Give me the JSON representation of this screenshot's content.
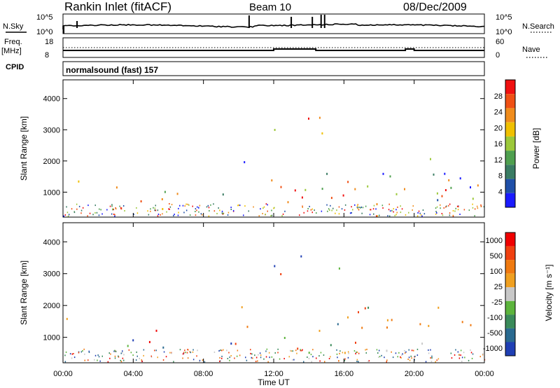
{
  "header": {
    "station": "Rankin Inlet (fitACF)",
    "beam": "Beam 10",
    "date": "08/Dec/2009"
  },
  "strip_panels": {
    "nsky": {
      "left_label": "N.Sky",
      "left_ticks": [
        "10^5",
        "10^0"
      ],
      "right_label": "N.Search",
      "right_ticks": [
        "10^5",
        "10^0"
      ]
    },
    "freq": {
      "left_label_top": "Freq.",
      "left_label_bottom": "[MHz]",
      "left_ticks": [
        "18",
        "8"
      ],
      "right_label": "Nave",
      "right_ticks": [
        "60",
        "0"
      ]
    },
    "cpid": {
      "label": "CPID",
      "value": "normalsound (fast) 157"
    }
  },
  "colors": {
    "power_scale": [
      "#1a1aff",
      "#1f4fa8",
      "#3a7c63",
      "#4fa04f",
      "#9cc83a",
      "#f0c000",
      "#f08c1c",
      "#f05014",
      "#f01010"
    ],
    "velocity_scale": [
      "#1f3fb4",
      "#2a6a90",
      "#3a8a5a",
      "#5cb43c",
      "#c8c8c8",
      "#f0a020",
      "#f07a10",
      "#f04010",
      "#f00000"
    ]
  },
  "chart_data": [
    {
      "type": "heatmap",
      "title": "",
      "ylabel": "Slant Range [km]",
      "xlabel": "",
      "ylim": [
        200,
        4600
      ],
      "y_ticks": [
        "1000",
        "2000",
        "3000",
        "4000"
      ],
      "colorbar": {
        "label": "Power [dB]",
        "ticks": [
          "4",
          "8",
          "12",
          "16",
          "20",
          "24",
          "28"
        ],
        "range": [
          0,
          32
        ]
      },
      "scatter_regions": [
        {
          "t": [
            0.0,
            1.3
          ],
          "r": [
            1100,
            2000
          ],
          "level": "mixed"
        },
        {
          "t": [
            2.3,
            6.5
          ],
          "r": [
            300,
            1300
          ],
          "level": "mixed"
        },
        {
          "t": [
            3.0,
            6.0
          ],
          "r": [
            300,
            900
          ],
          "level": "high"
        },
        {
          "t": [
            9.0,
            24.0
          ],
          "r": [
            500,
            2100
          ],
          "level": "mixed"
        },
        {
          "t": [
            13.5,
            23.5
          ],
          "r": [
            700,
            1200
          ],
          "level": "high"
        },
        {
          "t": [
            12.0,
            16.0
          ],
          "r": [
            2800,
            3700
          ],
          "level": "mixed"
        }
      ]
    },
    {
      "type": "heatmap",
      "title": "",
      "ylabel": "Slant Range [km]",
      "xlabel": "Time UT",
      "ylim": [
        200,
        4600
      ],
      "x_ticks": [
        "00:00",
        "04:00",
        "08:00",
        "12:00",
        "16:00",
        "20:00",
        "00:00"
      ],
      "y_ticks": [
        "1000",
        "2000",
        "3000",
        "4000"
      ],
      "colorbar": {
        "label": "Velocity [m s⁻¹]",
        "ticks": [
          "1000",
          "500",
          "100",
          "25",
          "-25",
          "-100",
          "-500",
          "-1000"
        ]
      },
      "scatter_regions": [
        {
          "t": [
            0.0,
            1.3
          ],
          "r": [
            1100,
            2000
          ],
          "level": "mixed"
        },
        {
          "t": [
            2.3,
            6.5
          ],
          "r": [
            300,
            1300
          ],
          "level": "mixed"
        },
        {
          "t": [
            9.0,
            24.0
          ],
          "r": [
            500,
            2100
          ],
          "level": "away"
        },
        {
          "t": [
            12.0,
            16.0
          ],
          "r": [
            2800,
            3700
          ],
          "level": "mixed"
        }
      ]
    }
  ]
}
